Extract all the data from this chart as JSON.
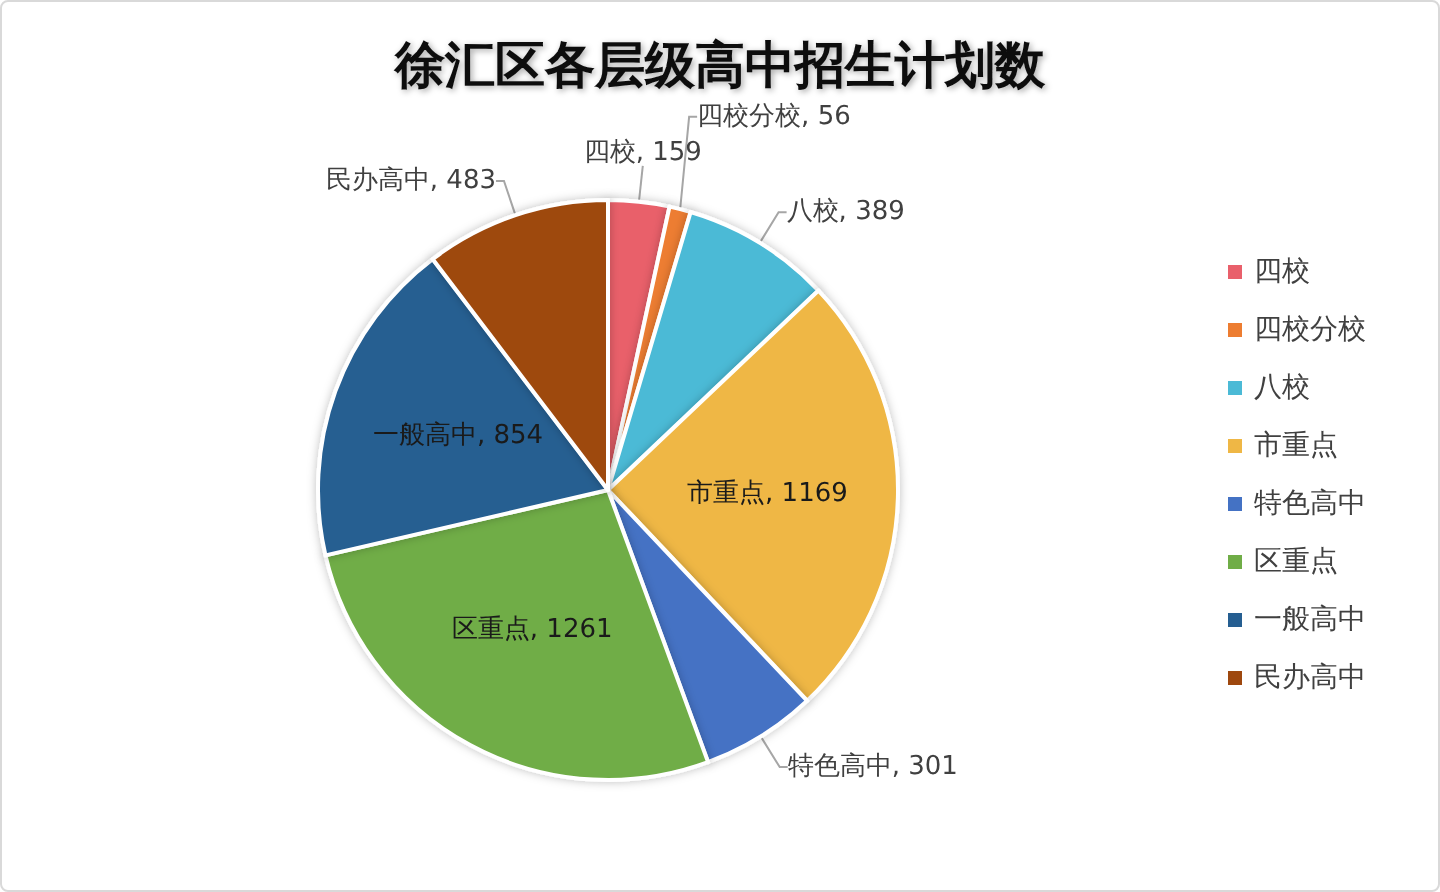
{
  "chart_data": {
    "type": "pie",
    "title": "徐汇区各层级高中招生计划数",
    "categories": [
      "四校",
      "四校分校",
      "八校",
      "市重点",
      "特色高中",
      "区重点",
      "一般高中",
      "民办高中"
    ],
    "values": [
      159,
      56,
      389,
      1169,
      301,
      1261,
      854,
      483
    ],
    "value_labels": [
      "四校, 159",
      "四校分校, 56",
      "八校, 389",
      "市重点, 1169",
      "特色高中, 301",
      "区重点, 1261",
      "一般高中, 854",
      "民办高中, 483"
    ],
    "colors": [
      "#e9606b",
      "#ed7d31",
      "#4bbad6",
      "#efb745",
      "#4472c4",
      "#70ad47",
      "#255e91",
      "#9e480e"
    ],
    "legend": "right"
  }
}
